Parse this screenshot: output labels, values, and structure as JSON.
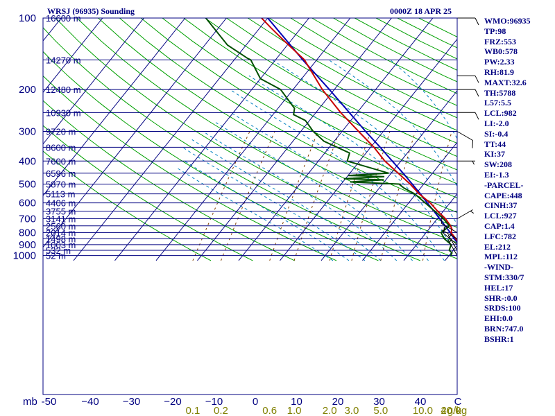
{
  "header": {
    "station": "WRSJ (96935) Sounding",
    "valid": "0000Z 18 APR 25"
  },
  "indices": [
    "WMO:96935",
    "TP:98",
    "FRZ:553",
    "WB0:578",
    "PW:2.33",
    "RH:81.9",
    "MAXT:32.6",
    "TH:5788",
    "L57:5.5",
    "LCL:982",
    "LI:-2.0",
    "SI:-0.4",
    "TT:44",
    "KI:37",
    "SW:208",
    "EI:-1.3",
    "-PARCEL-",
    "CAPE:448",
    "CINH:37",
    "LCL:927",
    "CAP:1.4",
    "LFC:782",
    "EL:212",
    "MPL:112",
    "-WIND-",
    "STM:330/7",
    "HEL:17",
    "SHR-:0.0",
    "SRDS:100",
    "EHI:0.0",
    "BRN:747.0",
    "BSHR:1"
  ],
  "chart_data": {
    "type": "line",
    "subtype": "skew-T log-P",
    "pressure_axis": {
      "unit_label": "mb",
      "ticks": [
        100,
        200,
        300,
        400,
        500,
        600,
        700,
        800,
        900,
        1000
      ],
      "range": [
        100,
        1050
      ],
      "scale": "log"
    },
    "temperature_axis": {
      "ticks": [
        -50,
        -40,
        -30,
        -20,
        -10,
        0,
        10,
        20,
        30,
        40
      ],
      "tick_labels": [
        "-50",
        "−40",
        "−30",
        "−20",
        "−10",
        "0",
        "10",
        "20",
        "30",
        "40"
      ],
      "end_label": "C"
    },
    "mixing_ratio_axis": {
      "ticks": [
        0.1,
        0.2,
        0.6,
        1.0,
        2.0,
        3.0,
        5.0,
        10.0,
        20.0,
        40.0
      ],
      "tick_labels": [
        "0.1",
        "0.2",
        "0.6",
        "1.0",
        "2.0",
        "3.0",
        "5.0",
        "10.0",
        "20.0",
        "40.0"
      ],
      "unit": "g/kg"
    },
    "heights": [
      {
        "p": 100,
        "label": "16600 m"
      },
      {
        "p": 150,
        "label": "14270 m"
      },
      {
        "p": 200,
        "label": "12480 m"
      },
      {
        "p": 250,
        "label": "10930 m"
      },
      {
        "p": 300,
        "label": "9720 m"
      },
      {
        "p": 350,
        "label": "8600 m"
      },
      {
        "p": 400,
        "label": "7600 m"
      },
      {
        "p": 450,
        "label": "6596 m"
      },
      {
        "p": 500,
        "label": "5870 m"
      },
      {
        "p": 550,
        "label": "5113 m"
      },
      {
        "p": 600,
        "label": "4406 m"
      },
      {
        "p": 650,
        "label": "3755 m"
      },
      {
        "p": 700,
        "label": "3141 m"
      },
      {
        "p": 750,
        "label": "2560 m"
      },
      {
        "p": 800,
        "label": "2014 m"
      },
      {
        "p": 850,
        "label": "1498 m"
      },
      {
        "p": 900,
        "label": "1003 m"
      },
      {
        "p": 950,
        "label": "532 m"
      },
      {
        "p": 1000,
        "label": "52 m"
      }
    ],
    "series": [
      {
        "role": "parcel",
        "color": "#0000b4",
        "points": [
          [
            1000,
            24.7
          ],
          [
            975,
            23.9
          ],
          [
            950,
            22.5
          ],
          [
            925,
            21.4
          ],
          [
            900,
            20.3
          ],
          [
            850,
            18.0
          ],
          [
            800,
            15.8
          ],
          [
            750,
            13.3
          ],
          [
            700,
            10.6
          ],
          [
            650,
            7.7
          ],
          [
            600,
            4.5
          ],
          [
            550,
            1.1
          ],
          [
            500,
            -2.8
          ],
          [
            450,
            -7.1
          ],
          [
            400,
            -12.1
          ],
          [
            350,
            -17.7
          ],
          [
            300,
            -24.3
          ],
          [
            250,
            -31.9
          ],
          [
            200,
            -41.2
          ],
          [
            150,
            -53.4
          ],
          [
            100,
            -70.0
          ]
        ]
      },
      {
        "role": "temperature",
        "color": "#c80000",
        "points": [
          [
            1000,
            23.0
          ],
          [
            975,
            23.3
          ],
          [
            950,
            21.8
          ],
          [
            925,
            21.4
          ],
          [
            900,
            20.4
          ],
          [
            850,
            18.4
          ],
          [
            800,
            16.0
          ],
          [
            775,
            15.6
          ],
          [
            750,
            14.6
          ],
          [
            700,
            12.0
          ],
          [
            650,
            8.6
          ],
          [
            600,
            5.2
          ],
          [
            550,
            0.8
          ],
          [
            500,
            -3.3
          ],
          [
            450,
            -8.3
          ],
          [
            400,
            -13.9
          ],
          [
            350,
            -19.2
          ],
          [
            300,
            -26.0
          ],
          [
            250,
            -34.0
          ],
          [
            200,
            -42.9
          ],
          [
            150,
            -53.0
          ],
          [
            125,
            -61.5
          ],
          [
            110,
            -67.3
          ],
          [
            100,
            -71.5
          ]
        ]
      },
      {
        "role": "dewpoint",
        "color": "#005000",
        "points": [
          [
            1000,
            20.4
          ],
          [
            975,
            20.2
          ],
          [
            950,
            19.0
          ],
          [
            900,
            18.4
          ],
          [
            850,
            15.6
          ],
          [
            800,
            13.6
          ],
          [
            775,
            14.0
          ],
          [
            750,
            14.3
          ],
          [
            700,
            11.5
          ],
          [
            650,
            7.9
          ],
          [
            600,
            4.0
          ],
          [
            550,
            -0.3
          ],
          [
            520,
            -4.0
          ],
          [
            500,
            -6.0
          ],
          [
            490,
            -18.2
          ],
          [
            480,
            -10.5
          ],
          [
            475,
            -20.4
          ],
          [
            465,
            -11.0
          ],
          [
            460,
            -20.0
          ],
          [
            450,
            -10.6
          ],
          [
            400,
            -23.0
          ],
          [
            370,
            -24.0
          ],
          [
            330,
            -32.5
          ],
          [
            300,
            -37.0
          ],
          [
            270,
            -41.0
          ],
          [
            255,
            -45.0
          ],
          [
            240,
            -46.0
          ],
          [
            200,
            -53.0
          ],
          [
            180,
            -60.0
          ],
          [
            150,
            -66.0
          ],
          [
            148,
            -67.0
          ],
          [
            130,
            -74.5
          ],
          [
            100,
            -85.0
          ]
        ]
      }
    ],
    "wind_barbs": [
      {
        "p": 1000,
        "direction": 330,
        "speed": 5
      },
      {
        "p": 950,
        "direction": 330,
        "speed": 5
      },
      {
        "p": 900,
        "direction": 310,
        "speed": 10
      },
      {
        "p": 850,
        "direction": 300,
        "speed": 5
      },
      {
        "p": 800,
        "direction": 300,
        "speed": 10
      },
      {
        "p": 700,
        "direction": 60,
        "speed": 5
      },
      {
        "p": 400,
        "direction": 90,
        "speed": 5
      },
      {
        "p": 300,
        "direction": 120,
        "speed": 10
      },
      {
        "p": 250,
        "direction": 90,
        "speed": 10
      },
      {
        "p": 200,
        "direction": 90,
        "speed": 10
      },
      {
        "p": 175,
        "direction": 90,
        "speed": 10
      },
      {
        "p": 100,
        "direction": 90,
        "speed": 10
      }
    ],
    "colors": {
      "frame": "#000080",
      "isobars": "#000080",
      "isotherms": "#000080",
      "dry_adiabats": "#00a000",
      "moist_adiabats": "#0080c0",
      "mixing_ratio": "#804000",
      "axis_text": "#000080",
      "mixing_text": "#808000"
    }
  }
}
